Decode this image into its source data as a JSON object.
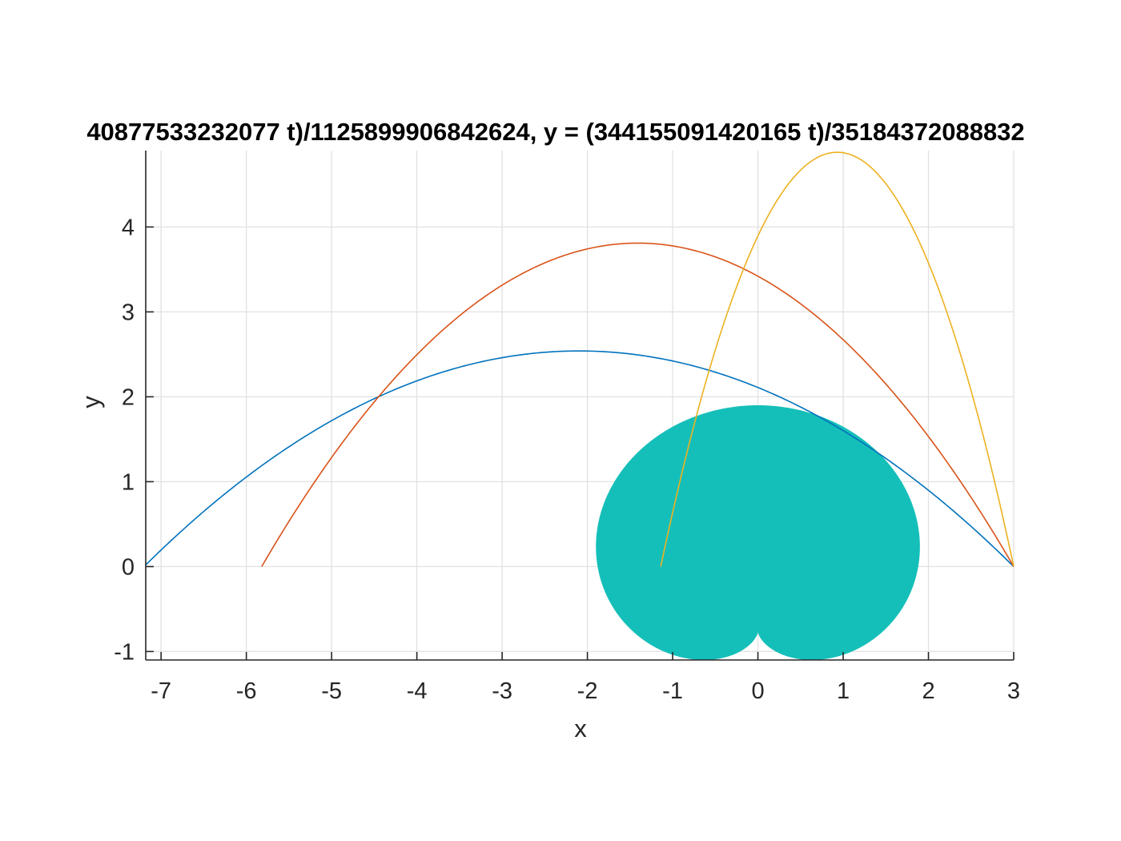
{
  "chart_data": {
    "type": "line",
    "title": "40877533232077 t)/1125899906842624, y = (344155091420165 t)/35184372088832",
    "xlabel": "x",
    "ylabel": "y",
    "xlim": [
      -7.18,
      3.0
    ],
    "ylim": [
      -1.1,
      4.9
    ],
    "grid": true,
    "x_ticks": [
      -7,
      -6,
      -5,
      -4,
      -3,
      -2,
      -1,
      0,
      1,
      2,
      3
    ],
    "y_ticks": [
      -1,
      0,
      1,
      2,
      3,
      4
    ],
    "x_tick_labels": [
      "-7",
      "-6",
      "-5",
      "-4",
      "-3",
      "-2",
      "-1",
      "0",
      "1",
      "2",
      "3"
    ],
    "y_tick_labels": [
      "-1",
      "0",
      "1",
      "2",
      "3",
      "4"
    ],
    "series": [
      {
        "color": "#0072BD",
        "shape": "parabola",
        "x_start": 3.0,
        "x_end": -7.18,
        "vertex": [
          -2.1,
          2.54
        ]
      },
      {
        "color": "#D95319",
        "shape": "parabola",
        "x_start": 3.0,
        "x_end": -5.82,
        "vertex": [
          -1.41,
          3.81
        ]
      },
      {
        "color": "#EDB120",
        "shape": "parabola",
        "x_start": 3.0,
        "x_end": -1.14,
        "vertex": [
          0.93,
          4.88
        ]
      }
    ],
    "filled_region": {
      "color": "#15BFB9",
      "shape": "heart",
      "center": [
        0,
        0
      ],
      "scale": 1.9,
      "x_range": [
        -1.9,
        1.9
      ],
      "y_range": [
        -1.1,
        1.9
      ]
    }
  }
}
